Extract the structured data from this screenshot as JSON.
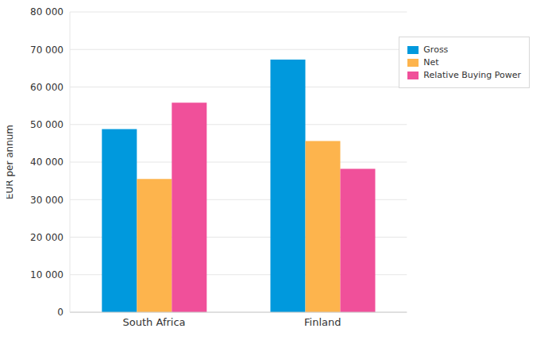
{
  "chart_data": {
    "type": "bar",
    "categories": [
      "South Africa",
      "Finland"
    ],
    "series": [
      {
        "name": "Gross",
        "color": "#0099dd",
        "values": [
          48800,
          67300
        ]
      },
      {
        "name": "Net",
        "color": "#fdb44d",
        "values": [
          35500,
          45600
        ]
      },
      {
        "name": "Relative Buying Power",
        "color": "#f0509a",
        "values": [
          55800,
          38200
        ]
      }
    ],
    "y_label": "EUR per annum",
    "ylim": [
      0,
      80000
    ],
    "yticks": [
      0,
      {
        "value": 10000,
        "label": "10 000"
      },
      {
        "value": 20000,
        "label": "20 000"
      },
      {
        "value": 30000,
        "label": "30 000"
      },
      {
        "value": 40000,
        "label": "40 000"
      },
      {
        "value": 50000,
        "label": "50 000"
      },
      {
        "value": 60000,
        "label": "60 000"
      },
      {
        "value": 70000,
        "label": "70 000"
      },
      {
        "value": 80000,
        "label": "80 000"
      }
    ],
    "grid": true,
    "legend": "upper right"
  }
}
